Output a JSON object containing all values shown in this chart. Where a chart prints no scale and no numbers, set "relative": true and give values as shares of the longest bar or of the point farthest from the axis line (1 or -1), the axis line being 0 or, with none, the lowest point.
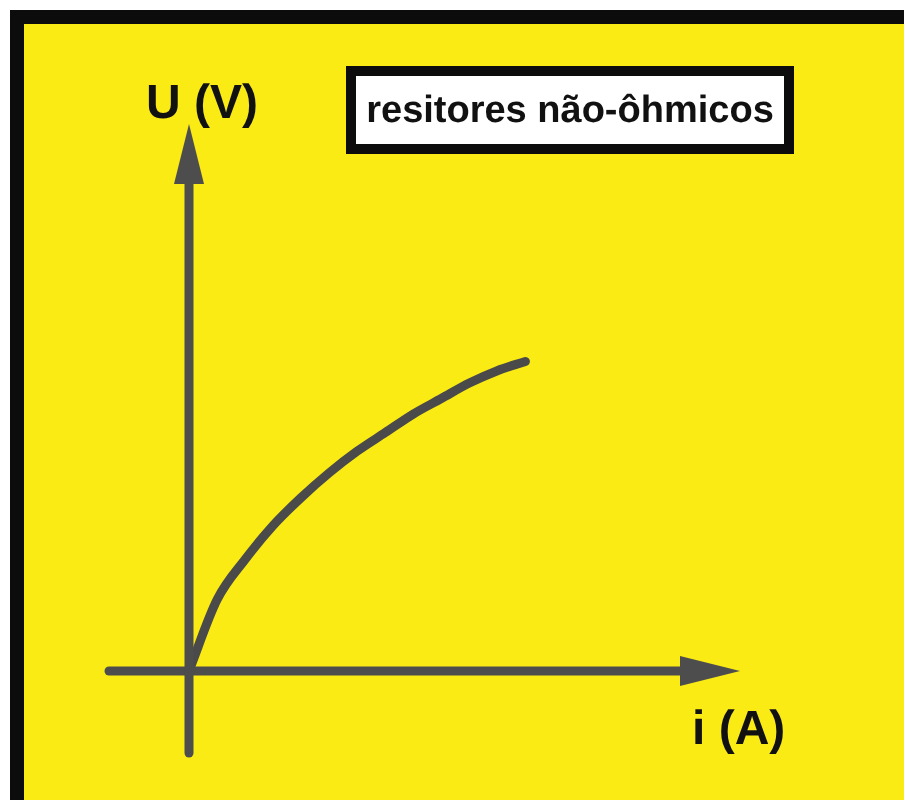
{
  "chart_data": {
    "type": "line",
    "title": "resitores não-ôhmicos",
    "xlabel": "i (A)",
    "ylabel": "U (V)",
    "categories": [
      null,
      null,
      null,
      null,
      null,
      null,
      null,
      null,
      null,
      null,
      null,
      null,
      null
    ],
    "values": [
      0,
      0.23,
      0.36,
      0.47,
      0.56,
      0.64,
      0.71,
      0.77,
      0.83,
      0.88,
      0.93,
      0.97,
      1
    ],
    "color": "#4a4a4a",
    "relative": true,
    "marker": "none",
    "line_style": "solid",
    "legend": false
  }
}
